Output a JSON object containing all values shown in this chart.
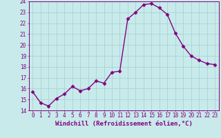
{
  "x": [
    0,
    1,
    2,
    3,
    4,
    5,
    6,
    7,
    8,
    9,
    10,
    11,
    12,
    13,
    14,
    15,
    16,
    17,
    18,
    19,
    20,
    21,
    22,
    23
  ],
  "y": [
    15.7,
    14.7,
    14.4,
    15.1,
    15.5,
    16.2,
    15.8,
    16.0,
    16.7,
    16.5,
    17.5,
    17.6,
    22.4,
    23.0,
    23.7,
    23.8,
    23.4,
    22.8,
    21.1,
    19.9,
    19.0,
    18.6,
    18.3,
    18.2
  ],
  "line_color": "#800080",
  "marker": "D",
  "marker_size": 2.5,
  "bg_color": "#c8eaea",
  "grid_color": "#a8d4d4",
  "xlabel": "Windchill (Refroidissement éolien,°C)",
  "ylim": [
    14,
    24
  ],
  "xlim_min": -0.5,
  "xlim_max": 23.5,
  "yticks": [
    14,
    15,
    16,
    17,
    18,
    19,
    20,
    21,
    22,
    23,
    24
  ],
  "xticks": [
    0,
    1,
    2,
    3,
    4,
    5,
    6,
    7,
    8,
    9,
    10,
    11,
    12,
    13,
    14,
    15,
    16,
    17,
    18,
    19,
    20,
    21,
    22,
    23
  ],
  "tick_fontsize": 5.5,
  "xlabel_fontsize": 6.5
}
